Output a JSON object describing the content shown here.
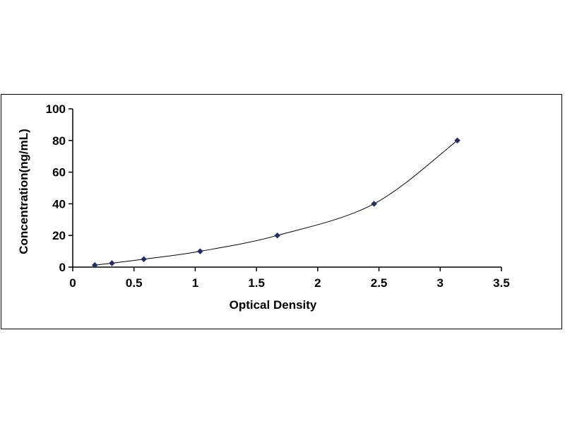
{
  "chart_data": {
    "type": "scatter",
    "title": "",
    "xlabel": "Optical Density",
    "ylabel": "Concentration(ng/mL)",
    "xlim": [
      0,
      3.5
    ],
    "ylim": [
      0,
      100
    ],
    "x_ticks": [
      "0",
      "0.5",
      "1",
      "1.5",
      "2",
      "2.5",
      "3",
      "3.5"
    ],
    "y_ticks": [
      "0",
      "20",
      "40",
      "60",
      "80",
      "100"
    ],
    "grid": false,
    "legend": "none",
    "series": [
      {
        "marker": "diamond",
        "line": "smooth",
        "color": "#1f2f6b",
        "points": [
          {
            "x": 0.18,
            "y": 1.25
          },
          {
            "x": 0.32,
            "y": 2.5
          },
          {
            "x": 0.58,
            "y": 5
          },
          {
            "x": 1.04,
            "y": 10
          },
          {
            "x": 1.67,
            "y": 20
          },
          {
            "x": 2.46,
            "y": 40
          },
          {
            "x": 3.14,
            "y": 80
          }
        ]
      }
    ]
  }
}
